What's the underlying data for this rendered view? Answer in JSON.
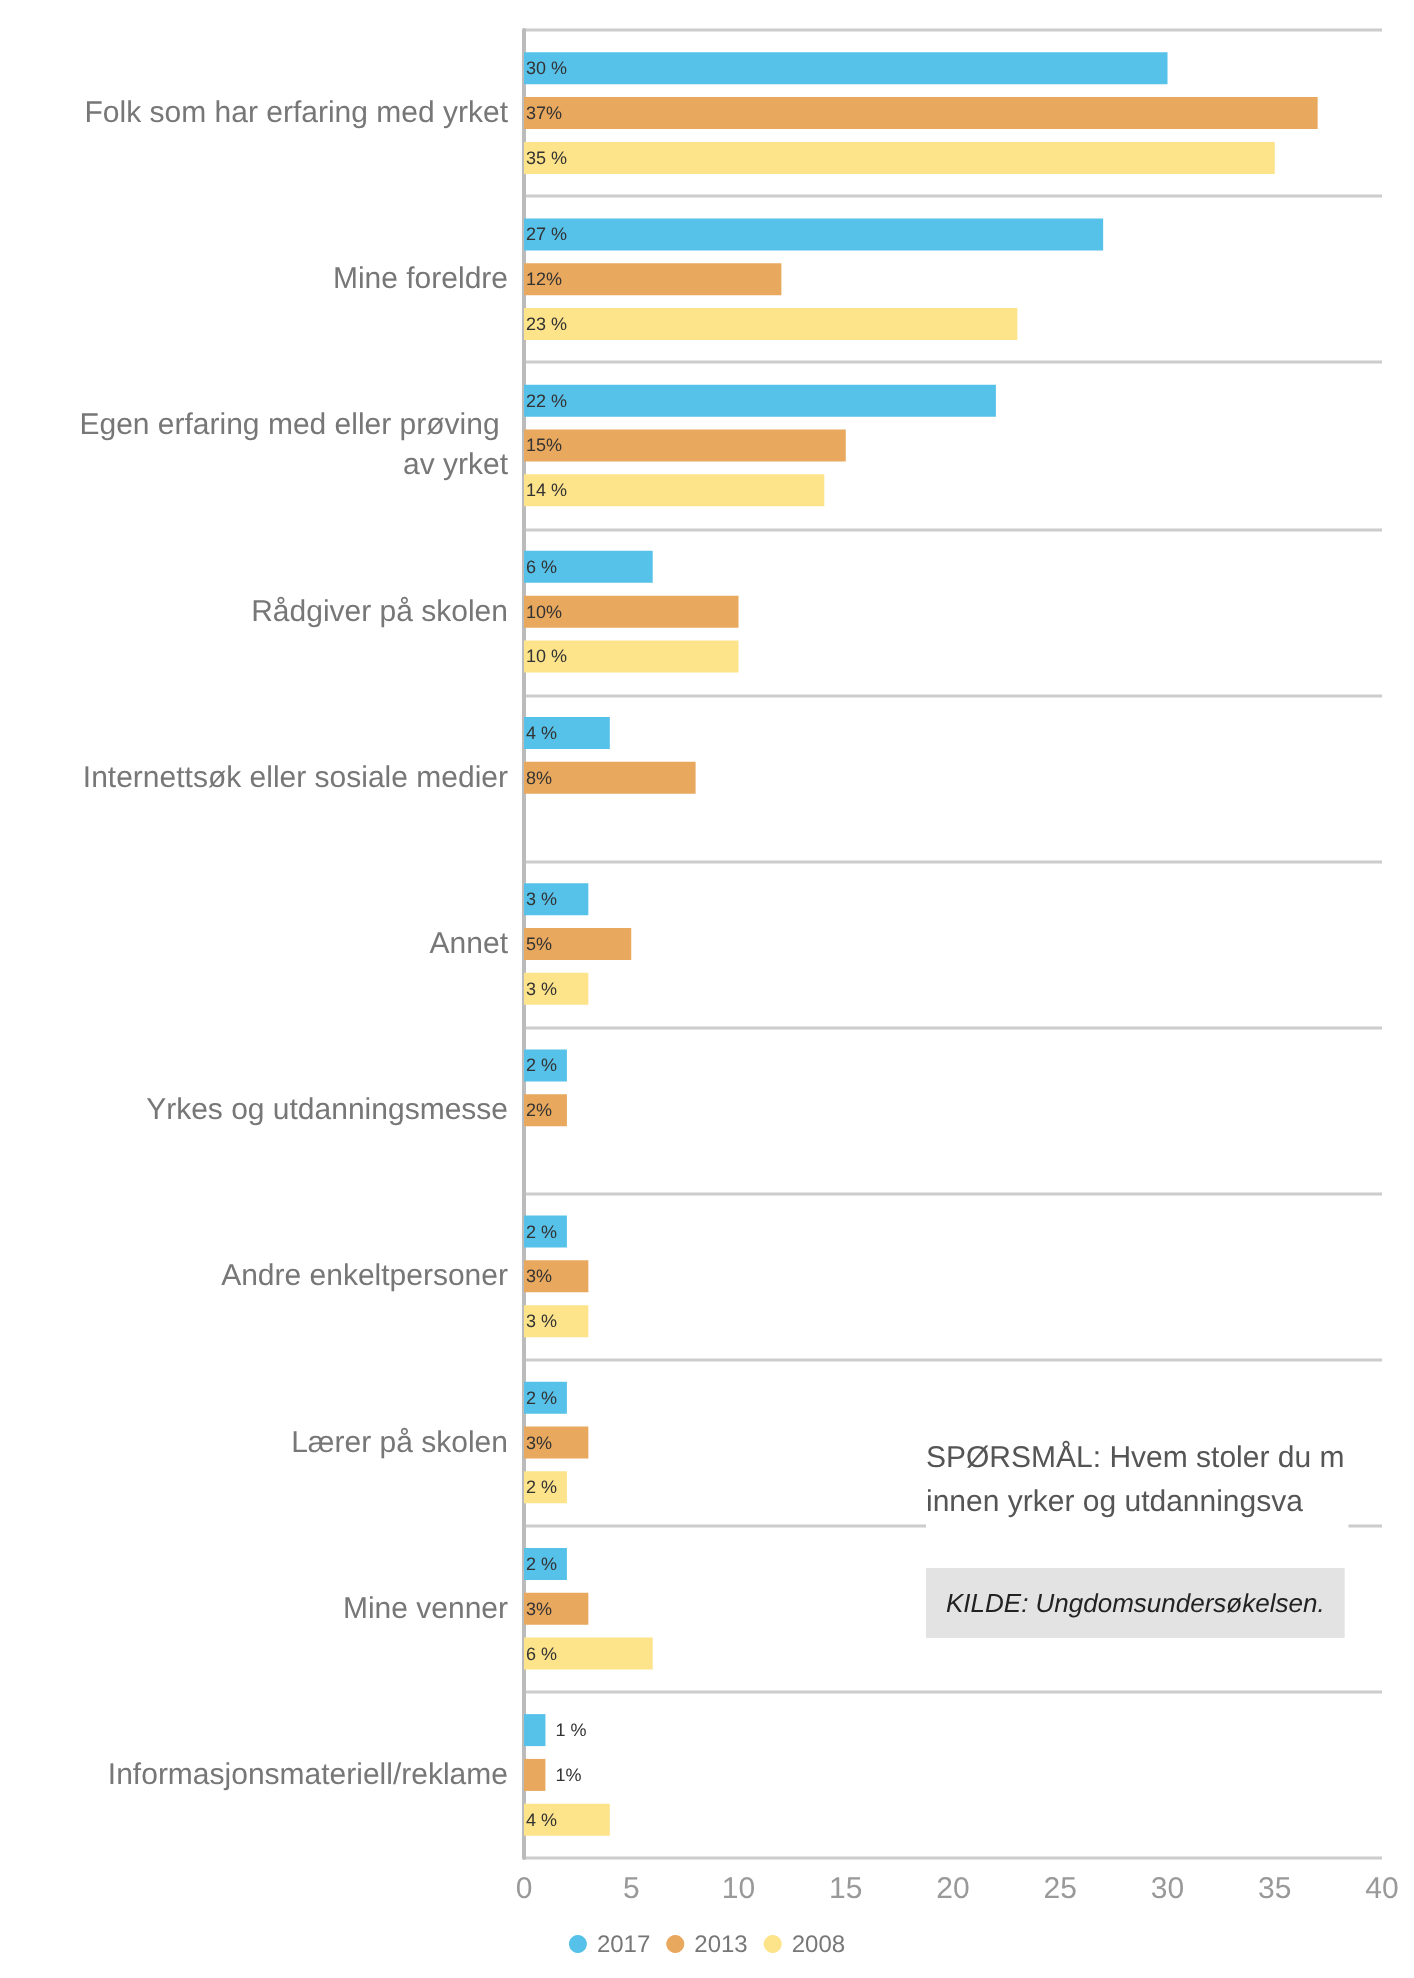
{
  "chart_data": {
    "type": "bar",
    "orientation": "horizontal",
    "categories": [
      "Folk som har erfaring med yrket",
      "Mine foreldre",
      "Egen erfaring med eller prøving av yrket",
      "Rådgiver på skolen",
      "Internettsøk eller sosiale medier",
      "Annet",
      "Yrkes og utdanningsmesse",
      "Andre enkeltpersoner",
      "Lærer på skolen",
      "Mine venner",
      "Informasjonsmateriell/reklame"
    ],
    "series": [
      {
        "name": "2017",
        "color": "#56c1e9",
        "values": [
          30,
          27,
          22,
          6,
          4,
          3,
          2,
          2,
          2,
          2,
          1
        ],
        "value_labels": [
          "30 %",
          "27 %",
          "22 %",
          "6 %",
          "4 %",
          "3 %",
          "2 %",
          "2 %",
          "2 %",
          "2 %",
          "1 %"
        ]
      },
      {
        "name": "2013",
        "color": "#e8a85e",
        "values": [
          37,
          12,
          15,
          10,
          8,
          5,
          2,
          3,
          3,
          3,
          1
        ],
        "value_labels": [
          "37%",
          "12%",
          "15%",
          "10%",
          "8%",
          "5%",
          "2%",
          "3%",
          "3%",
          "3%",
          "1%"
        ]
      },
      {
        "name": "2008",
        "color": "#fde38a",
        "values": [
          35,
          23,
          14,
          10,
          null,
          3,
          null,
          3,
          2,
          6,
          4
        ],
        "value_labels": [
          "35 %",
          "23 %",
          "14 %",
          "10 %",
          null,
          "3 %",
          null,
          "3 %",
          "2 %",
          "6 %",
          "4 %"
        ]
      }
    ],
    "xlim": [
      0,
      40
    ],
    "xticks": [
      0,
      5,
      10,
      15,
      20,
      25,
      30,
      35,
      40
    ],
    "grid": "y",
    "legend": "bottom",
    "annotations": [
      "SPØRSMÅL: Hvem stoler du m\ninnen yrker og utdanningsva",
      "KILDE: Ungdomsundersøkelsen."
    ]
  }
}
